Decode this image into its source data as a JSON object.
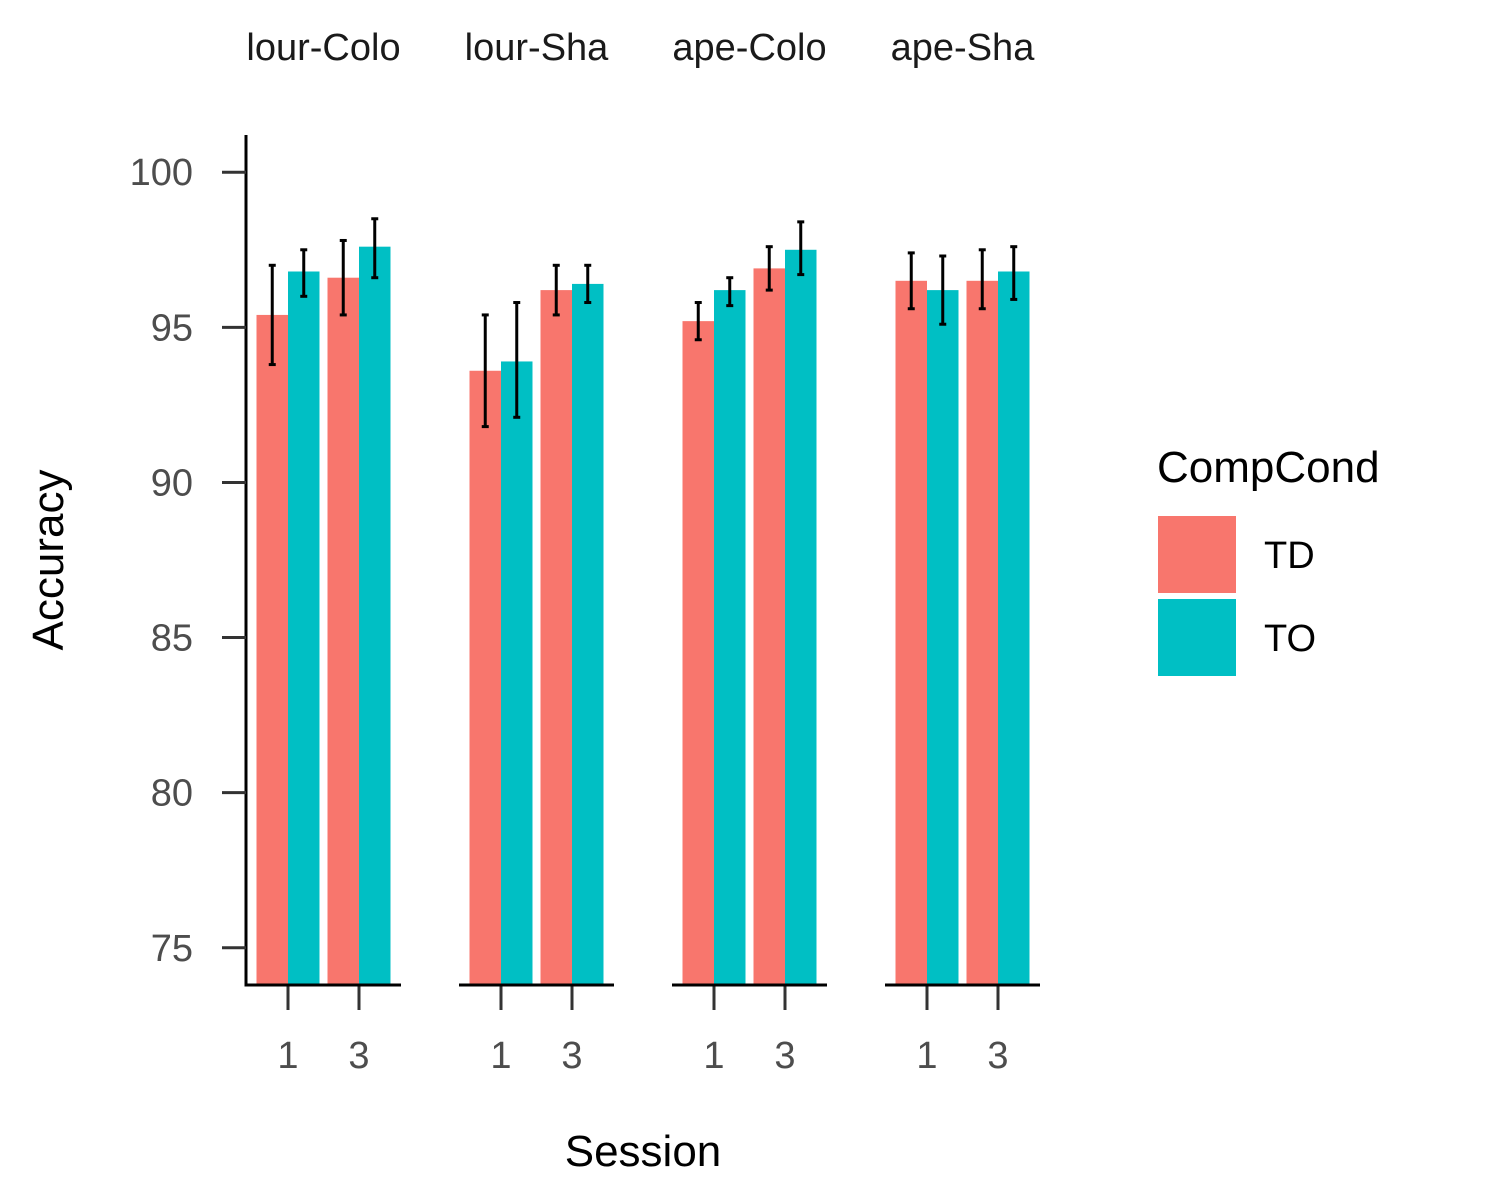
{
  "chart_data": {
    "type": "bar",
    "facets": [
      "Colour-Colour",
      "Colour-Shape",
      "Shape-Colour",
      "Shape-Shape"
    ],
    "facet_labels_visible": [
      "lour-Colo",
      "lour-Sha",
      "ape-Colo",
      "ape-Sha"
    ],
    "categories": [
      "1",
      "3"
    ],
    "xlabel": "Session",
    "ylabel": "Accuracy",
    "ylim": [
      73.8,
      101.2
    ],
    "yticks": [
      75,
      80,
      85,
      90,
      95,
      100
    ],
    "legend": {
      "title": "CompCond",
      "position": "right"
    },
    "grid": false,
    "series": [
      {
        "name": "TD",
        "color": "#F8766D",
        "values": [
          [
            95.4,
            96.6
          ],
          [
            93.6,
            96.2
          ],
          [
            95.2,
            96.9
          ],
          [
            96.5,
            96.5
          ]
        ],
        "error_low": [
          [
            93.8,
            95.4
          ],
          [
            91.8,
            95.4
          ],
          [
            94.6,
            96.2
          ],
          [
            95.6,
            95.6
          ]
        ],
        "error_high": [
          [
            97.0,
            97.8
          ],
          [
            95.4,
            97.0
          ],
          [
            95.8,
            97.6
          ],
          [
            97.4,
            97.5
          ]
        ]
      },
      {
        "name": "TO",
        "color": "#00BFC4",
        "values": [
          [
            96.8,
            97.6
          ],
          [
            93.9,
            96.4
          ],
          [
            96.2,
            97.5
          ],
          [
            96.2,
            96.8
          ]
        ],
        "error_low": [
          [
            96.0,
            96.6
          ],
          [
            92.1,
            95.8
          ],
          [
            95.7,
            96.7
          ],
          [
            95.1,
            95.9
          ]
        ],
        "error_high": [
          [
            97.5,
            98.5
          ],
          [
            95.8,
            97.0
          ],
          [
            96.6,
            98.4
          ],
          [
            97.3,
            97.6
          ]
        ]
      }
    ]
  }
}
